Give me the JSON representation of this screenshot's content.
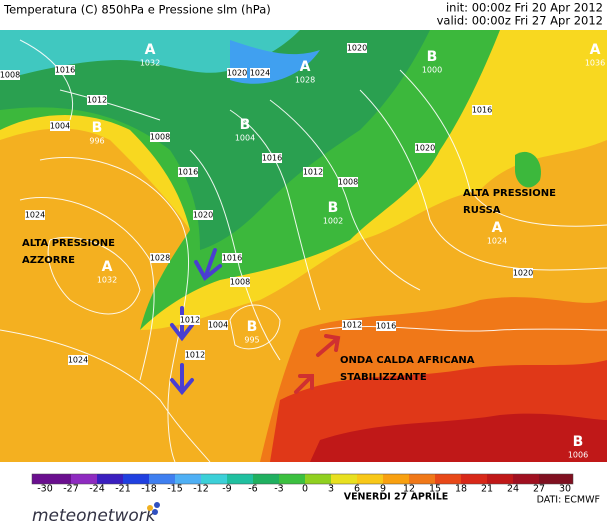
{
  "header": {
    "title": "Temperatura (C) 850hPa e Pressione slm (hPa)",
    "init": "init: 00:00z Fri 20 Apr 2012",
    "valid": "valid: 00:00z Fri 27 Apr 2012"
  },
  "annotations": [
    "ALTA PRESSIONE",
    "AZZORRE",
    "ALTA PRESSIONE",
    "RUSSA",
    "ONDA CALDA AFRICANA",
    "STABILIZZANTE"
  ],
  "pressure_centers": [
    {
      "type": "A",
      "value": 1032
    },
    {
      "type": "A",
      "value": 1028
    },
    {
      "type": "B",
      "value": 1000
    },
    {
      "type": "A",
      "value": 1036
    },
    {
      "type": "B",
      "value": 996
    },
    {
      "type": "B",
      "value": 1004
    },
    {
      "type": "B",
      "value": 1002
    },
    {
      "type": "A",
      "value": 1032
    },
    {
      "type": "A",
      "value": 1024
    },
    {
      "type": "B",
      "value": 995
    },
    {
      "type": "B",
      "value": 1006
    }
  ],
  "isobar_labels": [
    1008,
    1016,
    1012,
    1004,
    1008,
    1024,
    1020,
    1016,
    1012,
    1008,
    1016,
    1020,
    1024,
    1028,
    1024,
    1020,
    1016,
    1012,
    1004,
    1008,
    1012,
    1016,
    1020,
    1012,
    1016,
    1020
  ],
  "colorbar": {
    "ticks": [
      -30,
      -27,
      -24,
      -21,
      -18,
      -15,
      -12,
      -9,
      -6,
      -3,
      0,
      3,
      6,
      9,
      12,
      15,
      18,
      21,
      24,
      27,
      30
    ],
    "colors": [
      "#6a0f8e",
      "#8e2bc0",
      "#3a1fbf",
      "#2040e0",
      "#3f7ff0",
      "#4fb0f5",
      "#3cd0d8",
      "#20c0a0",
      "#20b060",
      "#3cc040",
      "#90d020",
      "#e8e020",
      "#f8c818",
      "#f8a010",
      "#f07818",
      "#e84818",
      "#d82818",
      "#c01818",
      "#a01020",
      "#801020"
    ]
  },
  "footer": {
    "date": "VENERDI 27 APRILE",
    "source": "DATI: ECMWF",
    "logo": "meteonetwork"
  }
}
